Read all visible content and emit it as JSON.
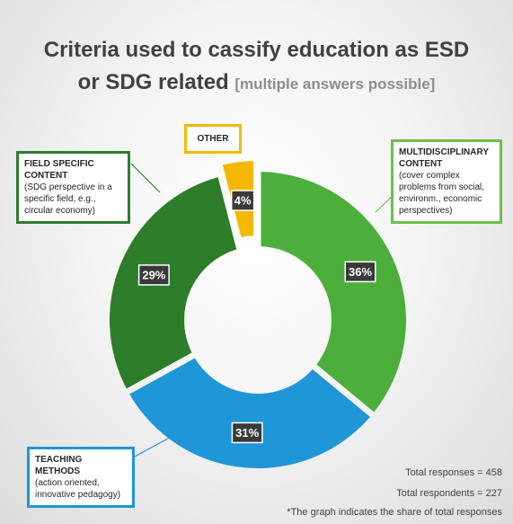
{
  "title": {
    "main_line1": "Criteria used to cassify education as ESD",
    "main_line2": "or SDG related",
    "note": "[multiple answers possible]"
  },
  "chart_data": {
    "type": "pie",
    "donut": true,
    "categories": [
      "MULTIDISCIPLINARY CONTENT",
      "TEACHING METHODS",
      "FIELD SPECIFIC CONTENT",
      "OTHER"
    ],
    "values": [
      36,
      31,
      29,
      4
    ],
    "value_labels": [
      "36%",
      "31%",
      "29%",
      "4%"
    ],
    "colors": [
      "#4caf3c",
      "#1e96d7",
      "#2e7d2a",
      "#f5b800"
    ],
    "exploded_slice": "OTHER",
    "legend": "callouts"
  },
  "callouts": {
    "multi": {
      "head": "MULTIDISCIPLINARY CONTENT",
      "desc": "(cover complex problems from social, environm., economic perspectives)"
    },
    "field": {
      "head": "FIELD SPECIFIC CONTENT",
      "desc": "(SDG perspective in a specific field, e.g., circular economy)"
    },
    "other": {
      "head": "OTHER"
    },
    "teach": {
      "head": "TEACHING METHODS",
      "desc": "(action oriented, innovative pedagogy)"
    }
  },
  "footer": {
    "responses": "Total responses = 458",
    "respondents": "Total respondents = 227",
    "note": "*The graph indicates the share of total responses"
  }
}
